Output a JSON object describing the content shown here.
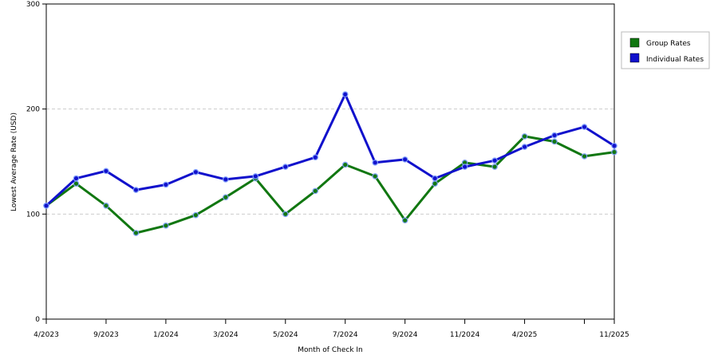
{
  "chart_data": {
    "type": "line",
    "xlabel": "Month of Check In",
    "ylabel": "Lowest Average Rate (USD)",
    "ylim": [
      0,
      300
    ],
    "y_ticks": [
      0,
      100,
      200,
      300
    ],
    "grid": "horizontal-dashed",
    "legend_position": "right",
    "x": [
      "4/2023",
      "6/2023",
      "9/2023",
      "10/2023",
      "1/2024",
      "2/2024",
      "3/2024",
      "4/2024",
      "5/2024",
      "6/2024",
      "7/2024",
      "8/2024",
      "9/2024",
      "10/2024",
      "11/2024",
      "1/2025",
      "4/2025",
      "5/2025",
      "9/2025",
      "11/2025"
    ],
    "x_tick_labels": [
      {
        "index": 0,
        "label": "4/2023"
      },
      {
        "index": 2,
        "label": "9/2023"
      },
      {
        "index": 4,
        "label": "1/2024"
      },
      {
        "index": 6,
        "label": "3/2024"
      },
      {
        "index": 8,
        "label": "5/2024"
      },
      {
        "index": 10,
        "label": "7/2024"
      },
      {
        "index": 12,
        "label": "9/2024"
      },
      {
        "index": 14,
        "label": "11/2024"
      },
      {
        "index": 16,
        "label": "4/2025"
      },
      {
        "index": 18,
        "label": ""
      },
      {
        "index": 19,
        "label": "11/2025"
      }
    ],
    "series": [
      {
        "name": "Group Rates",
        "color": "#117711",
        "values": [
          108,
          129,
          108,
          82,
          89,
          99,
          116,
          134,
          100,
          122,
          147,
          136,
          94,
          129,
          149,
          145,
          174,
          169,
          155,
          159
        ]
      },
      {
        "name": "Individual Rates",
        "color": "#1111cc",
        "values": [
          108,
          134,
          141,
          123,
          128,
          140,
          133,
          136,
          145,
          154,
          214,
          149,
          152,
          134,
          145,
          151,
          164,
          175,
          183,
          165
        ]
      }
    ]
  }
}
